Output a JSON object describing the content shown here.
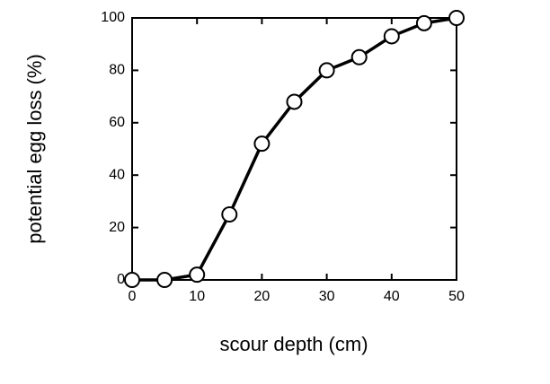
{
  "chart_data": {
    "type": "line",
    "x": [
      0,
      5,
      10,
      15,
      20,
      25,
      30,
      35,
      40,
      45,
      50
    ],
    "series": [
      {
        "color": "#000000",
        "values": [
          0,
          0,
          2,
          25,
          52,
          68,
          80,
          85,
          93,
          98,
          100
        ]
      }
    ],
    "xlabel": "scour depth (cm)",
    "ylabel": "potential egg loss (%)",
    "xlim": [
      0,
      50
    ],
    "xticks": [
      0,
      10,
      20,
      30,
      40,
      50
    ],
    "ylim": [
      0,
      100
    ],
    "yticks": [
      0,
      20,
      40,
      60,
      80,
      100
    ],
    "grid": false,
    "markers": true
  }
}
